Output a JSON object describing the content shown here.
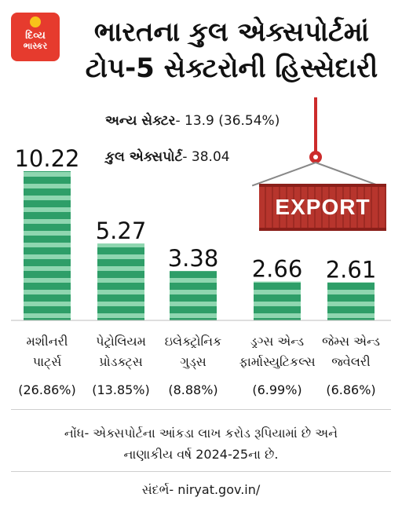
{
  "header": {
    "logo_line1": "દિવ્ય",
    "logo_line2": "ભાસ્કર",
    "title_line1": "ભારતના કુલ એક્સપોર્ટમાં",
    "title_line2": "ટોપ-5 સેક્ટરોની હિસ્સેદારી"
  },
  "notes": {
    "other_label": "અન્ય સેક્ટર",
    "other_value": "- 13.9 (36.54%)",
    "total_label": "કુલ એક્સપોર્ટ",
    "total_value": "- 38.04"
  },
  "illustration": {
    "container_text": "EXPORT",
    "container_color": "#b7352d"
  },
  "colors": {
    "bar": "#2e9e68",
    "bar_stripe": "#8fd6b0",
    "accent": "#e63b2e"
  },
  "chart_data": {
    "type": "bar",
    "categories": [
      [
        "મશીનરી",
        "પાર્ટ્સ"
      ],
      [
        "પેટ્રોલિયમ",
        "પ્રોડક્ટ્સ"
      ],
      [
        "ઇલેક્ટ્રોનિક",
        "ગુડ્સ"
      ],
      [
        "ડ્રગ્સ એન્ડ",
        "ફાર્માસ્યુટિકલ્સ"
      ],
      [
        "જેમ્સ એન્ડ",
        "જ્વેલરી"
      ]
    ],
    "values": [
      10.22,
      5.27,
      3.38,
      2.66,
      2.61
    ],
    "value_labels": [
      "10.22",
      "5.27",
      "3.38",
      "2.66",
      "2.61"
    ],
    "shares": [
      "(26.86%)",
      "(13.85%)",
      "(8.88%)",
      "(6.99%)",
      "(6.86%)"
    ],
    "ylim": [
      0,
      10.22
    ],
    "grid": false
  },
  "footer": {
    "note_line1": "નોંધ- એક્સપોર્ટના આંકડા લાખ કરોડ રૂપિયામાં છે અને",
    "note_line2": "નાણાકીય વર્ષ 2024-25ના છે.",
    "source": "સંદર્ભ- niryat.gov.in/"
  }
}
